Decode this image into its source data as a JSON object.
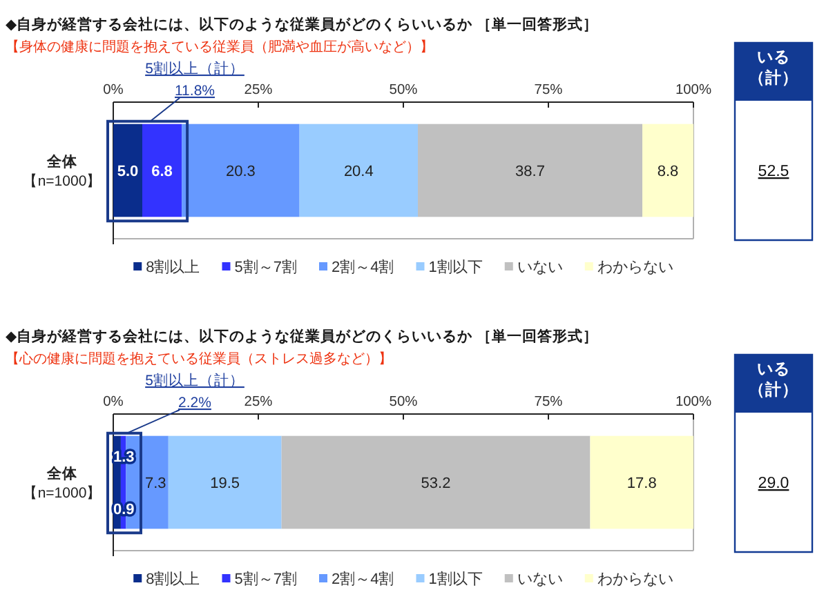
{
  "chart_data": [
    {
      "type": "bar",
      "orientation": "horizontal",
      "stacked": true,
      "title": "◆自身が経営する会社には、以下のような従業員がどのくらいいるか ［単一回答形式］",
      "subtitle": "【身体の健康に問題を抱えている従業員（肥満や血圧が高いなど）】",
      "categories": [
        "全体【n=1000】"
      ],
      "xlim": [
        0,
        100
      ],
      "xticks": [
        {
          "value": 0,
          "label": "0%"
        },
        {
          "value": 25,
          "label": "25%"
        },
        {
          "value": 50,
          "label": "50%"
        },
        {
          "value": 75,
          "label": "75%"
        },
        {
          "value": 100,
          "label": "100%"
        }
      ],
      "series": [
        {
          "name": "8割以上",
          "color": "#0a2d8c",
          "values": [
            5.0
          ],
          "value_labels": [
            "5.0"
          ]
        },
        {
          "name": "5割～7割",
          "color": "#3333ff",
          "values": [
            6.8
          ],
          "value_labels": [
            "6.8"
          ]
        },
        {
          "name": "2割～4割",
          "color": "#6699ff",
          "values": [
            20.3
          ],
          "value_labels": [
            "20.3"
          ]
        },
        {
          "name": "1割以下",
          "color": "#99ccff",
          "values": [
            20.4
          ],
          "value_labels": [
            "20.4"
          ]
        },
        {
          "name": "いない",
          "color": "#c0c0c0",
          "values": [
            38.7
          ],
          "value_labels": [
            "38.7"
          ]
        },
        {
          "name": "わからない",
          "color": "#ffffcc",
          "values": [
            8.8
          ],
          "value_labels": [
            "8.8"
          ]
        }
      ],
      "legend": "bottom",
      "annotations": [
        "5割以上（計）\n11.8%",
        "いる（計）",
        "52.5"
      ]
    },
    {
      "type": "bar",
      "orientation": "horizontal",
      "stacked": true,
      "title": "◆自身が経営する会社には、以下のような従業員がどのくらいいるか ［単一回答形式］",
      "subtitle": "【心の健康に問題を抱えている従業員（ストレス過多など）】",
      "categories": [
        "全体【n=1000】"
      ],
      "xlim": [
        0,
        100
      ],
      "xticks": [
        {
          "value": 0,
          "label": "0%"
        },
        {
          "value": 25,
          "label": "25%"
        },
        {
          "value": 50,
          "label": "50%"
        },
        {
          "value": 75,
          "label": "75%"
        },
        {
          "value": 100,
          "label": "100%"
        }
      ],
      "series": [
        {
          "name": "8割以上",
          "color": "#0a2d8c",
          "values": [
            1.3
          ],
          "value_labels": [
            "1.3"
          ]
        },
        {
          "name": "5割～7割",
          "color": "#3333ff",
          "values": [
            0.9
          ],
          "value_labels": [
            "0.9"
          ]
        },
        {
          "name": "2割～4割",
          "color": "#6699ff",
          "values": [
            7.3
          ],
          "value_labels": [
            "7.3"
          ]
        },
        {
          "name": "1割以下",
          "color": "#99ccff",
          "values": [
            19.5
          ],
          "value_labels": [
            "19.5"
          ]
        },
        {
          "name": "いない",
          "color": "#c0c0c0",
          "values": [
            53.2
          ],
          "value_labels": [
            "53.2"
          ]
        },
        {
          "name": "わからない",
          "color": "#ffffcc",
          "values": [
            17.8
          ],
          "value_labels": [
            "17.8"
          ]
        }
      ],
      "legend": "bottom",
      "annotations": [
        "5割以上（計）\n2.2%",
        "いる（計）",
        "29.0"
      ]
    }
  ]
}
